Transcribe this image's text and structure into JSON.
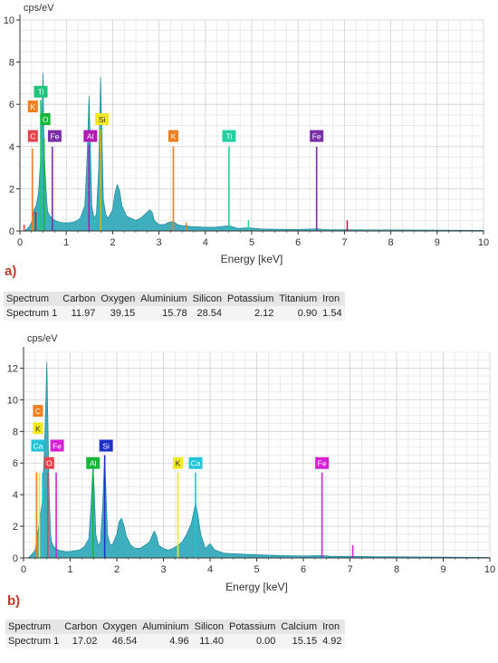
{
  "chart_data": [
    {
      "type": "area",
      "ylabel": "cps/eV",
      "xlabel": "Energy [keV]",
      "xlim": [
        0,
        10
      ],
      "ylim": [
        0,
        10
      ],
      "x_ticks": [
        0,
        1,
        2,
        3,
        4,
        5,
        6,
        7,
        8,
        9,
        10
      ],
      "y_ticks": [
        0,
        2,
        4,
        6,
        8,
        10
      ],
      "grid": true,
      "spectrum_color": "#2aa6b8",
      "spectrum": {
        "x": [
          0.1,
          0.2,
          0.25,
          0.28,
          0.3,
          0.35,
          0.4,
          0.45,
          0.5,
          0.52,
          0.55,
          0.58,
          0.6,
          0.65,
          0.7,
          0.75,
          0.8,
          0.9,
          1.0,
          1.1,
          1.2,
          1.3,
          1.4,
          1.45,
          1.49,
          1.52,
          1.55,
          1.6,
          1.65,
          1.7,
          1.74,
          1.77,
          1.8,
          1.85,
          1.9,
          2.0,
          2.05,
          2.1,
          2.15,
          2.2,
          2.3,
          2.4,
          2.5,
          2.6,
          2.7,
          2.8,
          2.85,
          2.9,
          3.0,
          3.1,
          3.2,
          3.31,
          3.4,
          3.5,
          3.6,
          3.7,
          3.8,
          4.0,
          4.2,
          4.51,
          4.7,
          4.93,
          5.2,
          5.5,
          6.0,
          6.4,
          6.6,
          7.0,
          7.5,
          8.0,
          9.0,
          10.0
        ],
        "y": [
          0,
          0.2,
          0.4,
          0.7,
          1.0,
          1.2,
          1.8,
          3.5,
          7.5,
          4.0,
          2.5,
          1.4,
          0.9,
          0.7,
          0.6,
          0.5,
          0.45,
          0.4,
          0.38,
          0.4,
          0.45,
          0.6,
          1.2,
          3.5,
          6.4,
          4.0,
          1.2,
          0.6,
          0.8,
          3.0,
          7.3,
          4.5,
          1.5,
          0.8,
          0.6,
          1.0,
          1.8,
          2.2,
          1.9,
          1.2,
          0.7,
          0.6,
          0.5,
          0.6,
          0.8,
          1.0,
          0.9,
          0.5,
          0.3,
          0.3,
          0.4,
          0.45,
          0.3,
          0.25,
          0.25,
          0.2,
          0.2,
          0.18,
          0.18,
          0.25,
          0.12,
          0.15,
          0.1,
          0.08,
          0.07,
          0.1,
          0.06,
          0.06,
          0.05,
          0.05,
          0.04,
          0.03
        ]
      },
      "element_lines": [
        {
          "x": 0.09,
          "height": 0.3,
          "color": "#e8434b"
        },
        {
          "x": 0.27,
          "height": 3.9,
          "color": "#f07f22"
        },
        {
          "x": 0.34,
          "height": 0.9,
          "color": "#c11f1f"
        },
        {
          "x": 0.45,
          "height": 6.2,
          "color": "#21c47d"
        },
        {
          "x": 0.52,
          "height": 4.4,
          "color": "#17b83a"
        },
        {
          "x": 0.7,
          "height": 4.0,
          "color": "#7a2fa8"
        },
        {
          "x": 1.49,
          "height": 4.1,
          "color": "#b11bb3"
        },
        {
          "x": 1.74,
          "height": 4.8,
          "color": "#c9b911"
        },
        {
          "x": 3.31,
          "height": 4.0,
          "color": "#f07f22"
        },
        {
          "x": 3.59,
          "height": 0.4,
          "color": "#f07f22"
        },
        {
          "x": 4.51,
          "height": 4.0,
          "color": "#21d1a0"
        },
        {
          "x": 4.93,
          "height": 0.5,
          "color": "#21d1a0"
        },
        {
          "x": 6.4,
          "height": 4.0,
          "color": "#7a2fa8"
        },
        {
          "x": 7.06,
          "height": 0.5,
          "color": "#c11f4f"
        }
      ],
      "element_labels": [
        {
          "text": "C",
          "x": 0.28,
          "y": 4.5,
          "color": "#e8434b"
        },
        {
          "text": "K",
          "x": 0.28,
          "y": 5.9,
          "color": "#f07f22"
        },
        {
          "text": "Ti",
          "x": 0.45,
          "y": 6.6,
          "color": "#21c47d"
        },
        {
          "text": "O",
          "x": 0.55,
          "y": 5.3,
          "color": "#17b83a"
        },
        {
          "text": "Fe",
          "x": 0.75,
          "y": 4.5,
          "color": "#7a2fa8"
        },
        {
          "text": "Al",
          "x": 1.52,
          "y": 4.5,
          "color": "#b11bb3"
        },
        {
          "text": "Si",
          "x": 1.77,
          "y": 5.3,
          "color": "#f3e91f"
        },
        {
          "text": "K",
          "x": 3.31,
          "y": 4.5,
          "color": "#f07f22"
        },
        {
          "text": "Ti",
          "x": 4.51,
          "y": 4.5,
          "color": "#21d1a0"
        },
        {
          "text": "Fe",
          "x": 6.4,
          "y": 4.5,
          "color": "#7a2fa8"
        }
      ]
    },
    {
      "type": "area",
      "ylabel": "cps/eV",
      "xlabel": "Energy [keV]",
      "xlim": [
        0,
        10
      ],
      "ylim": [
        0,
        13
      ],
      "x_ticks": [
        0,
        1,
        2,
        3,
        4,
        5,
        6,
        7,
        8,
        9,
        10
      ],
      "y_ticks": [
        0,
        2,
        4,
        6,
        8,
        10,
        12
      ],
      "grid": true,
      "spectrum_color": "#2aa6b8",
      "spectrum": {
        "x": [
          0.1,
          0.2,
          0.25,
          0.28,
          0.3,
          0.35,
          0.4,
          0.45,
          0.5,
          0.52,
          0.55,
          0.58,
          0.6,
          0.65,
          0.7,
          0.75,
          0.8,
          0.9,
          1.0,
          1.1,
          1.2,
          1.3,
          1.4,
          1.45,
          1.49,
          1.52,
          1.55,
          1.6,
          1.65,
          1.7,
          1.74,
          1.77,
          1.8,
          1.85,
          1.9,
          2.0,
          2.05,
          2.1,
          2.15,
          2.2,
          2.3,
          2.4,
          2.5,
          2.6,
          2.7,
          2.8,
          2.85,
          2.9,
          3.0,
          3.1,
          3.2,
          3.31,
          3.4,
          3.5,
          3.6,
          3.69,
          3.75,
          3.8,
          3.9,
          4.0,
          4.1,
          4.3,
          4.6,
          5.0,
          5.5,
          6.0,
          6.4,
          6.6,
          7.0,
          7.5,
          8.0,
          9.0,
          10.0
        ],
        "y": [
          0,
          0.3,
          0.5,
          1.0,
          1.5,
          2.5,
          3.5,
          7.0,
          12.4,
          9.0,
          4.0,
          1.5,
          1.0,
          0.7,
          0.6,
          0.5,
          0.45,
          0.4,
          0.4,
          0.45,
          0.5,
          0.7,
          1.2,
          3.5,
          6.0,
          4.0,
          1.5,
          0.8,
          1.0,
          3.5,
          6.5,
          4.0,
          1.5,
          0.9,
          0.8,
          1.5,
          2.3,
          2.5,
          2.1,
          1.4,
          0.8,
          0.6,
          0.6,
          0.8,
          1.0,
          1.7,
          1.4,
          0.8,
          0.6,
          0.5,
          0.6,
          0.8,
          1.0,
          1.5,
          2.2,
          3.5,
          2.5,
          1.5,
          0.6,
          0.9,
          0.5,
          0.3,
          0.25,
          0.2,
          0.15,
          0.12,
          0.15,
          0.1,
          0.1,
          0.08,
          0.07,
          0.05,
          0.03
        ]
      },
      "element_lines": [
        {
          "x": 0.28,
          "height": 5.4,
          "color": "#f07f22"
        },
        {
          "x": 0.34,
          "height": 5.4,
          "color": "#f3e91f"
        },
        {
          "x": 0.41,
          "height": 5.4,
          "color": "#21c4d8"
        },
        {
          "x": 0.52,
          "height": 5.4,
          "color": "#e8434b"
        },
        {
          "x": 0.7,
          "height": 5.4,
          "color": "#d61fd6"
        },
        {
          "x": 1.49,
          "height": 5.4,
          "color": "#17b83a"
        },
        {
          "x": 1.74,
          "height": 6.5,
          "color": "#1f2fc9"
        },
        {
          "x": 3.31,
          "height": 5.4,
          "color": "#f3e91f"
        },
        {
          "x": 3.69,
          "height": 5.4,
          "color": "#21c4d8"
        },
        {
          "x": 6.4,
          "height": 5.4,
          "color": "#d61fd6"
        },
        {
          "x": 7.06,
          "height": 0.8,
          "color": "#d61fd6"
        }
      ],
      "element_labels": [
        {
          "text": "C",
          "x": 0.31,
          "y": 9.3,
          "color": "#f07f22"
        },
        {
          "text": "K",
          "x": 0.31,
          "y": 8.2,
          "color": "#f3e91f"
        },
        {
          "text": "Ca",
          "x": 0.31,
          "y": 7.1,
          "color": "#21c4d8"
        },
        {
          "text": "Fe",
          "x": 0.72,
          "y": 7.1,
          "color": "#d61fd6"
        },
        {
          "text": "O",
          "x": 0.55,
          "y": 6.0,
          "color": "#e8434b"
        },
        {
          "text": "Al",
          "x": 1.49,
          "y": 6.0,
          "color": "#17b83a"
        },
        {
          "text": "Si",
          "x": 1.77,
          "y": 7.1,
          "color": "#1f2fc9"
        },
        {
          "text": "K",
          "x": 3.31,
          "y": 6.0,
          "color": "#f3e91f"
        },
        {
          "text": "Ca",
          "x": 3.69,
          "y": 6.0,
          "color": "#21c4d8"
        },
        {
          "text": "Fe",
          "x": 6.4,
          "y": 6.0,
          "color": "#d61fd6"
        }
      ]
    }
  ],
  "panels": [
    {
      "letter": "a)"
    },
    {
      "letter": "b)"
    }
  ],
  "tables": [
    {
      "headers": [
        "Spectrum",
        "Carbon",
        "Oxygen",
        "Aluminium",
        "Silicon",
        "Potassium",
        "Titanium",
        "Iron"
      ],
      "rows": [
        [
          "Spectrum 1",
          "11.97",
          "39.15",
          "15.78",
          "28.54",
          "2.12",
          "0.90",
          "1.54"
        ]
      ]
    },
    {
      "headers": [
        "Spectrum",
        "Carbon",
        "Oxygen",
        "Aluminium",
        "Silicon",
        "Potassium",
        "Calcium",
        "Iron"
      ],
      "rows": [
        [
          "Spectrum 1",
          "17.02",
          "46.54",
          "4.96",
          "11.40",
          "0.00",
          "15.15",
          "4.92"
        ]
      ]
    }
  ]
}
